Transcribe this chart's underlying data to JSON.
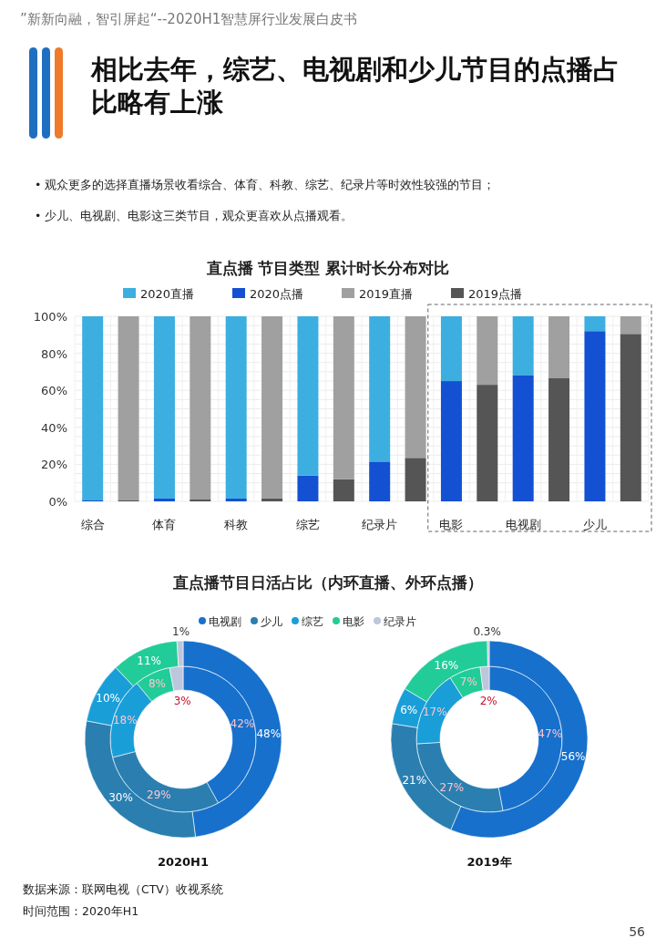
{
  "chart_data": [
    {
      "type": "bar",
      "stacked": true,
      "title": "直点播 节目类型 累计时长分布对比",
      "categories": [
        "综合",
        null,
        "体育",
        null,
        "科教",
        null,
        "综艺",
        null,
        "纪录片",
        null,
        "电影",
        null,
        "电视剧",
        null,
        "少儿",
        null
      ],
      "series": [
        {
          "name": "2020点播",
          "color": "#1450d2",
          "values": [
            0.5,
            null,
            1.5,
            null,
            1.5,
            null,
            14,
            null,
            21.5,
            null,
            65,
            null,
            68,
            null,
            92,
            null
          ]
        },
        {
          "name": "2020直播",
          "color": "#3daee0",
          "values": [
            99.5,
            null,
            98.5,
            null,
            98.5,
            null,
            86,
            null,
            78.5,
            null,
            35,
            null,
            32,
            null,
            8,
            null
          ]
        },
        {
          "name": "2019点播",
          "color": "#555555",
          "values": [
            null,
            0.5,
            null,
            1,
            null,
            1.5,
            null,
            12,
            null,
            23.5,
            null,
            63,
            null,
            66.5,
            null,
            90.5
          ]
        },
        {
          "name": "2019直播",
          "color": "#a0a0a0",
          "values": [
            null,
            99.5,
            null,
            99,
            null,
            98.5,
            null,
            88,
            null,
            76.5,
            null,
            37,
            null,
            33.5,
            null,
            9.5
          ]
        }
      ],
      "ylim": [
        0,
        100
      ],
      "yticks": [
        {
          "value": 0,
          "label": "0%"
        },
        {
          "value": 20,
          "label": "20%"
        },
        {
          "value": 40,
          "label": "40%"
        },
        {
          "value": 60,
          "label": "60%"
        },
        {
          "value": 80,
          "label": "80%"
        },
        {
          "value": 100,
          "label": "100%"
        }
      ],
      "grid": true,
      "legend": "top",
      "annotations": [
        "”新新向融，智引屏起“--2020H1智慧屏行业发展白皮书",
        "相比去年，综艺、电视剧和少儿节目的点播占比略有上涨",
        "• 观众更多的选择直播场景收看综合、体育、科教、综艺、纪录片等时效性较强的节目；",
        "• 少儿、电视剧、电影这三类节目，观众更喜欢从点播观看。"
      ]
    },
    {
      "type": "donut",
      "title": "直点播节目日活占比（内环直播、外环点播）",
      "subtitle": "2020H1",
      "legend": "top",
      "categories": [
        "电视剧",
        "少儿",
        "综艺",
        "电影",
        "纪录片"
      ],
      "colors": [
        "#1770cc",
        "#2a7fb0",
        "#1a9ed8",
        "#22cc98",
        "#bcc6dc"
      ],
      "series": [
        {
          "values": [
            42,
            29,
            18,
            8,
            3
          ],
          "value_labels": [
            "42%",
            "29%",
            "18%",
            "8%",
            "3%"
          ]
        },
        {
          "values": [
            48,
            30,
            10,
            11,
            1
          ],
          "value_labels": [
            "48%",
            "30%",
            "10%",
            "11%",
            "1%"
          ]
        }
      ]
    },
    {
      "type": "donut",
      "subtitle": "2019年",
      "categories": [
        null,
        null,
        null,
        null,
        null
      ],
      "colors": [
        "#1770cc",
        "#2a7fb0",
        "#1a9ed8",
        "#22cc98",
        "#bcc6dc"
      ],
      "series": [
        {
          "values": [
            47,
            27,
            17,
            7,
            2
          ],
          "value_labels": [
            "47%",
            "27%",
            "17%",
            "7%",
            "2%"
          ]
        },
        {
          "values": [
            56,
            21,
            6,
            16,
            0.3
          ],
          "value_labels": [
            "56%",
            "21%",
            "6%",
            "16%",
            "0.3%"
          ]
        }
      ],
      "annotations": [
        "数据来源：联网电视（CTV）收视系统",
        "时间范围：2020年H1",
        "56"
      ]
    }
  ]
}
